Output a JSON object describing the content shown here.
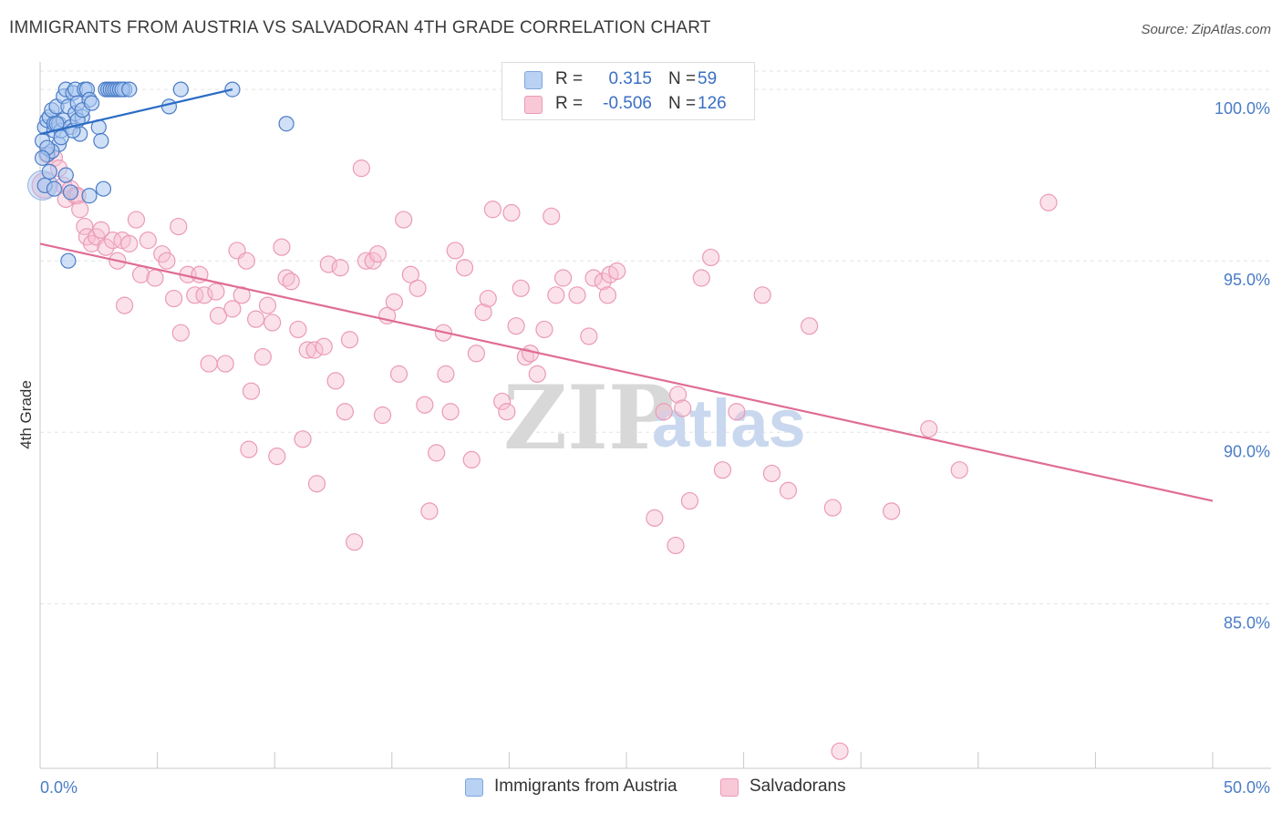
{
  "title": "IMMIGRANTS FROM AUSTRIA VS SALVADORAN 4TH GRADE CORRELATION CHART",
  "source": "Source: ZipAtlas.com",
  "watermark": {
    "part1": "ZIP",
    "part2": "atlas"
  },
  "colors": {
    "blue": "#4a7cc7",
    "blue_fill": "#a9c6ef",
    "blue_line": "#2b6cc4",
    "pink": "#e57fa2",
    "pink_fill": "#f6bfd0",
    "pink_line": "#e06c96",
    "tick_text": "#4a7cc7"
  },
  "legend": {
    "rows": [
      {
        "r_label": "R =",
        "r_value": "0.315",
        "n_label": "N =",
        "n_value": "59"
      },
      {
        "r_label": "R =",
        "r_value": "-0.506",
        "n_label": "N =",
        "n_value": "126"
      }
    ]
  },
  "bottom_legend": [
    "Immigrants from Austria",
    "Salvadorans"
  ],
  "chart_data": {
    "type": "scatter",
    "title": "IMMIGRANTS FROM AUSTRIA VS SALVADORAN 4TH GRADE CORRELATION CHART",
    "xlabel": "",
    "ylabel": "4th Grade",
    "xlim": [
      0,
      50
    ],
    "ylim": [
      80.2,
      100.8
    ],
    "x_tick_labels": [
      "0.0%",
      "50.0%"
    ],
    "y_ticks": [
      85,
      90,
      95,
      100
    ],
    "y_tick_labels": [
      "85.0%",
      "90.0%",
      "95.0%",
      "100.0%"
    ],
    "grid": true,
    "legend_position": "top-center",
    "series": [
      {
        "name": "Immigrants from Austria",
        "color": "#4a7cc7",
        "trend": {
          "x": [
            0.0,
            8.2
          ],
          "y": [
            98.7,
            100.0
          ]
        },
        "points": [
          [
            0.1,
            98.5
          ],
          [
            0.2,
            98.9
          ],
          [
            0.3,
            99.1
          ],
          [
            0.3,
            98.1
          ],
          [
            0.4,
            99.2
          ],
          [
            0.5,
            99.4
          ],
          [
            0.6,
            98.8
          ],
          [
            0.6,
            99.0
          ],
          [
            0.7,
            99.5
          ],
          [
            0.8,
            98.4
          ],
          [
            0.8,
            99.0
          ],
          [
            0.9,
            98.8
          ],
          [
            1.0,
            99.1
          ],
          [
            1.0,
            99.8
          ],
          [
            1.1,
            100.0
          ],
          [
            1.2,
            99.5
          ],
          [
            1.3,
            98.9
          ],
          [
            1.4,
            99.9
          ],
          [
            1.5,
            100.0
          ],
          [
            1.5,
            99.3
          ],
          [
            1.6,
            99.6
          ],
          [
            1.7,
            98.7
          ],
          [
            1.8,
            99.2
          ],
          [
            1.9,
            100.0
          ],
          [
            2.0,
            100.0
          ],
          [
            2.1,
            99.7
          ],
          [
            2.5,
            98.9
          ],
          [
            2.6,
            98.5
          ],
          [
            2.8,
            100.0
          ],
          [
            2.9,
            100.0
          ],
          [
            3.0,
            100.0
          ],
          [
            3.1,
            100.0
          ],
          [
            3.2,
            100.0
          ],
          [
            3.3,
            100.0
          ],
          [
            3.4,
            100.0
          ],
          [
            3.6,
            100.0
          ],
          [
            5.5,
            99.5
          ],
          [
            6.0,
            100.0
          ],
          [
            8.2,
            100.0
          ],
          [
            10.5,
            99.0
          ],
          [
            0.2,
            97.2
          ],
          [
            0.4,
            97.6
          ],
          [
            0.6,
            97.1
          ],
          [
            1.1,
            97.5
          ],
          [
            1.3,
            97.0
          ],
          [
            2.1,
            96.9
          ],
          [
            2.7,
            97.1
          ],
          [
            1.2,
            95.0
          ],
          [
            0.5,
            98.2
          ],
          [
            0.9,
            98.6
          ],
          [
            1.4,
            98.8
          ],
          [
            1.6,
            99.1
          ],
          [
            0.3,
            98.3
          ],
          [
            0.7,
            99.0
          ],
          [
            1.8,
            99.4
          ],
          [
            2.2,
            99.6
          ],
          [
            3.5,
            100.0
          ],
          [
            3.8,
            100.0
          ],
          [
            0.1,
            98.0
          ]
        ],
        "sizes": {
          "large": [
            40
          ],
          "small": 9
        }
      },
      {
        "name": "Salvadorans",
        "color": "#e57fa2",
        "trend": {
          "x": [
            0.0,
            50.0
          ],
          "y": [
            95.5,
            88.0
          ]
        },
        "points": [
          [
            0.3,
            98.1
          ],
          [
            0.6,
            98.0
          ],
          [
            0.8,
            97.7
          ],
          [
            1.0,
            97.2
          ],
          [
            1.1,
            96.8
          ],
          [
            1.3,
            97.1
          ],
          [
            1.5,
            96.9
          ],
          [
            1.6,
            96.9
          ],
          [
            1.7,
            96.5
          ],
          [
            1.9,
            96.0
          ],
          [
            2.0,
            95.7
          ],
          [
            2.2,
            95.5
          ],
          [
            2.4,
            95.7
          ],
          [
            2.6,
            95.9
          ],
          [
            2.8,
            95.4
          ],
          [
            3.1,
            95.6
          ],
          [
            3.3,
            95.0
          ],
          [
            3.5,
            95.6
          ],
          [
            3.6,
            93.7
          ],
          [
            3.8,
            95.5
          ],
          [
            4.1,
            96.2
          ],
          [
            4.3,
            94.6
          ],
          [
            4.6,
            95.6
          ],
          [
            4.9,
            94.5
          ],
          [
            5.2,
            95.2
          ],
          [
            5.4,
            95.0
          ],
          [
            5.7,
            93.9
          ],
          [
            5.9,
            96.0
          ],
          [
            6.0,
            92.9
          ],
          [
            6.3,
            94.6
          ],
          [
            6.6,
            94.0
          ],
          [
            6.8,
            94.6
          ],
          [
            7.0,
            94.0
          ],
          [
            7.2,
            92.0
          ],
          [
            7.5,
            94.1
          ],
          [
            7.6,
            93.4
          ],
          [
            7.9,
            92.0
          ],
          [
            8.2,
            93.6
          ],
          [
            8.4,
            95.3
          ],
          [
            8.6,
            94.0
          ],
          [
            8.8,
            95.0
          ],
          [
            8.9,
            89.5
          ],
          [
            9.2,
            93.3
          ],
          [
            9.5,
            92.2
          ],
          [
            9.7,
            93.7
          ],
          [
            9.9,
            93.2
          ],
          [
            10.1,
            89.3
          ],
          [
            10.3,
            95.4
          ],
          [
            10.5,
            94.5
          ],
          [
            10.7,
            94.4
          ],
          [
            11.0,
            93.0
          ],
          [
            11.2,
            89.8
          ],
          [
            11.4,
            92.4
          ],
          [
            11.7,
            92.4
          ],
          [
            11.8,
            88.5
          ],
          [
            12.1,
            92.5
          ],
          [
            12.3,
            94.9
          ],
          [
            12.6,
            91.5
          ],
          [
            12.8,
            94.8
          ],
          [
            13.0,
            90.6
          ],
          [
            13.2,
            92.7
          ],
          [
            13.4,
            86.8
          ],
          [
            13.7,
            97.7
          ],
          [
            13.9,
            95.0
          ],
          [
            14.2,
            95.0
          ],
          [
            14.4,
            95.2
          ],
          [
            14.6,
            90.5
          ],
          [
            14.8,
            93.4
          ],
          [
            15.1,
            93.8
          ],
          [
            15.3,
            91.7
          ],
          [
            15.5,
            96.2
          ],
          [
            15.8,
            94.6
          ],
          [
            16.1,
            94.2
          ],
          [
            16.4,
            90.8
          ],
          [
            16.6,
            87.7
          ],
          [
            16.9,
            89.4
          ],
          [
            17.2,
            92.9
          ],
          [
            17.3,
            91.7
          ],
          [
            17.5,
            90.6
          ],
          [
            17.7,
            95.3
          ],
          [
            18.1,
            94.8
          ],
          [
            18.6,
            92.3
          ],
          [
            18.9,
            93.5
          ],
          [
            19.1,
            93.9
          ],
          [
            19.3,
            96.5
          ],
          [
            19.7,
            90.9
          ],
          [
            19.9,
            90.6
          ],
          [
            20.1,
            96.4
          ],
          [
            20.3,
            93.1
          ],
          [
            20.5,
            94.2
          ],
          [
            20.7,
            92.2
          ],
          [
            20.9,
            92.3
          ],
          [
            21.2,
            91.7
          ],
          [
            21.5,
            93.0
          ],
          [
            21.8,
            96.3
          ],
          [
            22.0,
            94.0
          ],
          [
            22.3,
            94.5
          ],
          [
            22.9,
            94.0
          ],
          [
            23.4,
            92.8
          ],
          [
            23.6,
            94.5
          ],
          [
            24.0,
            94.4
          ],
          [
            24.2,
            94.0
          ],
          [
            24.3,
            94.6
          ],
          [
            24.6,
            94.7
          ],
          [
            26.2,
            87.5
          ],
          [
            26.6,
            90.6
          ],
          [
            27.1,
            86.7
          ],
          [
            27.2,
            91.1
          ],
          [
            27.4,
            90.7
          ],
          [
            27.7,
            88.0
          ],
          [
            28.2,
            94.5
          ],
          [
            28.6,
            95.1
          ],
          [
            29.1,
            88.9
          ],
          [
            29.7,
            90.6
          ],
          [
            30.8,
            94.0
          ],
          [
            31.2,
            88.8
          ],
          [
            31.9,
            88.3
          ],
          [
            32.8,
            93.1
          ],
          [
            33.8,
            87.8
          ],
          [
            34.1,
            80.7
          ],
          [
            36.3,
            87.7
          ],
          [
            37.9,
            90.1
          ],
          [
            39.2,
            88.9
          ],
          [
            43.0,
            96.7
          ],
          [
            9.0,
            91.2
          ],
          [
            18.4,
            89.2
          ]
        ],
        "sizes": {
          "large": [
            40
          ],
          "small": 9
        }
      }
    ]
  }
}
